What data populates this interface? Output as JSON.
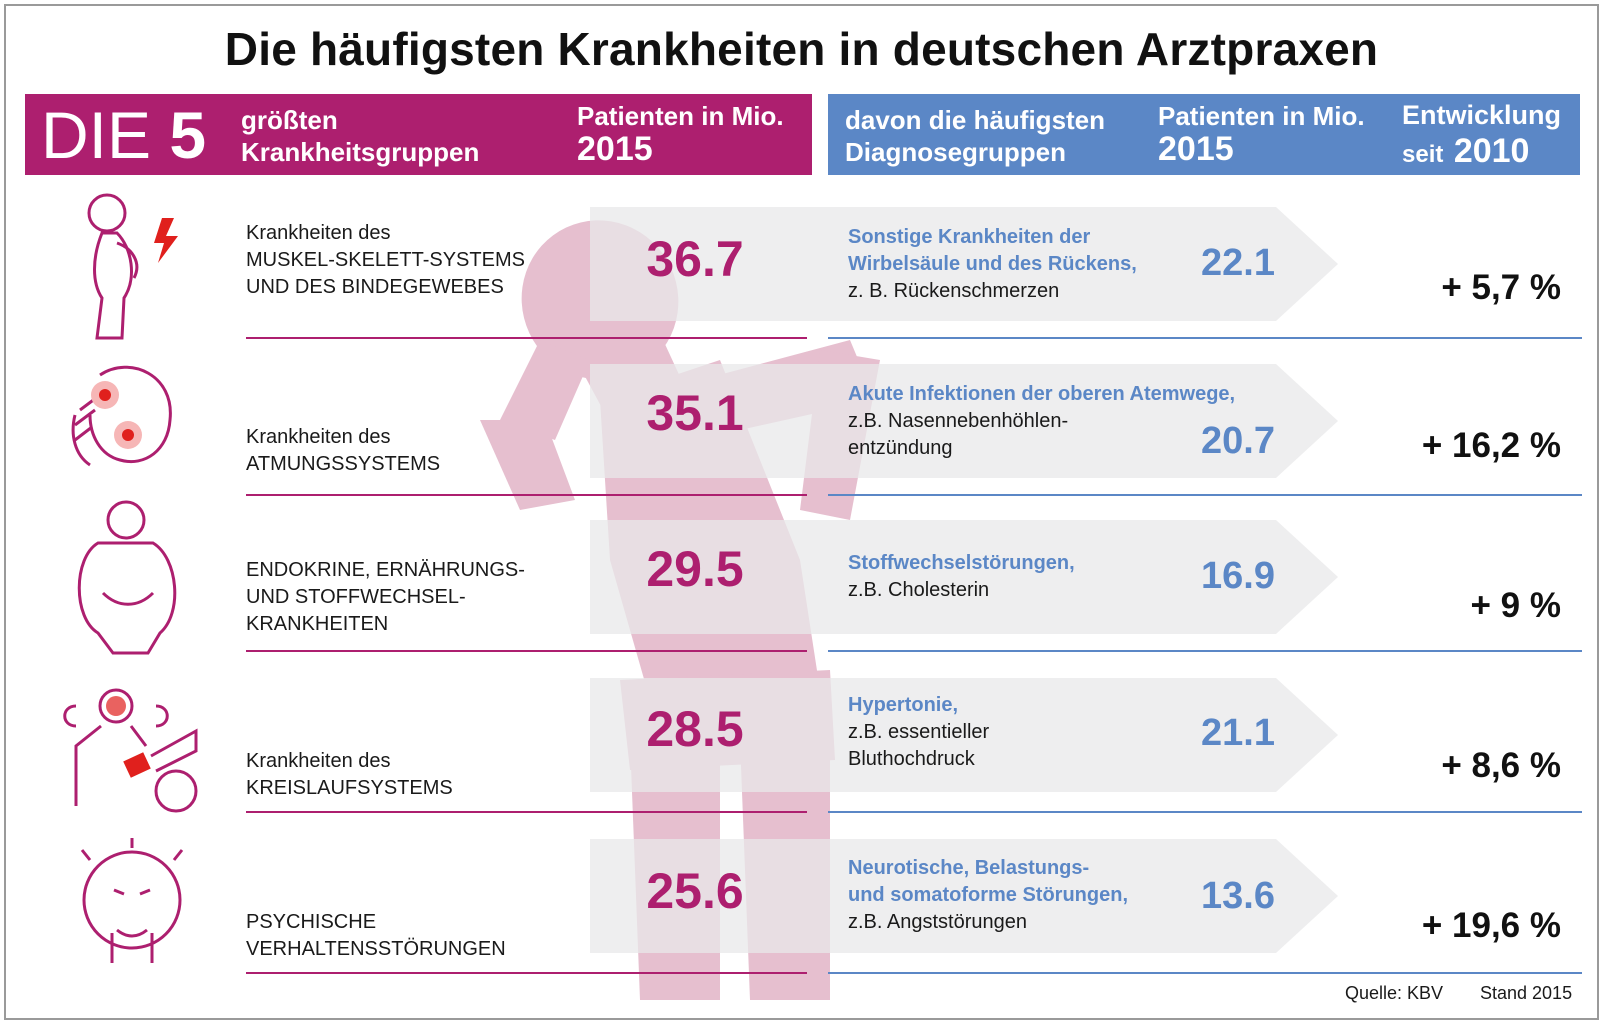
{
  "title": "Die häufigsten Krankheiten in deutschen Arztpraxen",
  "header_left": {
    "die": "DIE",
    "five": "5",
    "groups_line1": "größten",
    "groups_line2": "Krankheitsgruppen",
    "patients_line1": "Patienten in Mio.",
    "patients_year": "2015"
  },
  "header_right": {
    "diag_line1": "davon die häufigsten",
    "diag_line2": "Diagnosegruppen",
    "patients_line1": "Patienten in Mio.",
    "patients_year": "2015",
    "dev_line1": "Entwicklung",
    "dev_seit": "seit",
    "dev_year": "2010"
  },
  "colors": {
    "magenta": "#ad1f6f",
    "blue": "#5b87c6",
    "figure": "#e6bfcf",
    "arrow": "#e8e8ea"
  },
  "rows": [
    {
      "icon": "back-pain-icon",
      "category_line1": "Krankheiten des",
      "category_line2": "MUSKEL-SKELETT-SYSTEMS",
      "category_line3": "UND DES BINDEGEWEBES",
      "patients": "36.7",
      "diag_line1": "Sonstige Krankheiten der",
      "diag_line2": "Wirbelsäule und des Rückens,",
      "diag_line3": "z. B. Rückenschmerzen",
      "diag_patients": "22.1",
      "development": "+ 5,7 %"
    },
    {
      "icon": "sinus-pain-icon",
      "category_line1": "Krankheiten des",
      "category_line2": "ATMUNGSSYSTEMS",
      "category_line3": "",
      "patients": "35.1",
      "diag_line1": "Akute Infektionen der oberen Atemwege,",
      "diag_line2": "z.B. Nasennebenhöhlen-",
      "diag_line3": "entzündung",
      "diag_patients": "20.7",
      "development": "+ 16,2 %"
    },
    {
      "icon": "overweight-person-icon",
      "category_line1": "ENDOKRINE, ERNÄHRUNGS-",
      "category_line2": "UND STOFFWECHSEL-",
      "category_line3": "KRANKHEITEN",
      "patients": "29.5",
      "diag_line1": "Stoffwechselstörungen,",
      "diag_line2": "z.B. Cholesterin",
      "diag_line3": "",
      "diag_patients": "16.9",
      "development": "+ 9 %"
    },
    {
      "icon": "blood-pressure-icon",
      "category_line1": "Krankheiten des",
      "category_line2": "KREISLAUFSYSTEMS",
      "category_line3": "",
      "patients": "28.5",
      "diag_line1": "Hypertonie,",
      "diag_line2": "z.B. essentieller",
      "diag_line3": "Bluthochdruck",
      "diag_patients": "21.1",
      "development": "+ 8,6 %"
    },
    {
      "icon": "anxious-face-icon",
      "category_line1": "PSYCHISCHE",
      "category_line2": "VERHALTENSSTÖRUNGEN",
      "category_line3": "",
      "patients": "25.6",
      "diag_line1": "Neurotische, Belastungs-",
      "diag_line2": "und somatoforme Störungen,",
      "diag_line3": "z.B. Angststörungen",
      "diag_patients": "13.6",
      "development": "+ 19,6 %"
    }
  ],
  "footer": {
    "source": "Quelle: KBV",
    "stand": "Stand 2015"
  },
  "chart_data": {
    "type": "table",
    "title": "Die häufigsten Krankheiten in deutschen Arztpraxen",
    "columns": [
      "größten Krankheitsgruppen",
      "Patienten in Mio. 2015",
      "davon die häufigsten Diagnosegruppen",
      "Patienten in Mio. 2015",
      "Entwicklung seit 2010"
    ],
    "categories": [
      "Krankheiten des MUSKEL-SKELETT-SYSTEMS UND DES BINDEGEWEBES",
      "Krankheiten des ATMUNGSSYSTEMS",
      "ENDOKRINE, ERNÄHRUNGS- UND STOFFWECHSEL-KRANKHEITEN",
      "Krankheiten des KREISLAUFSYSTEMS",
      "PSYCHISCHE VERHALTENSSTÖRUNGEN"
    ],
    "series": [
      {
        "name": "Patienten in Mio. 2015",
        "values": [
          36.7,
          35.1,
          29.5,
          28.5,
          25.6
        ]
      },
      {
        "name": "Patienten in Mio. 2015",
        "values": [
          22.1,
          20.7,
          16.9,
          21.1,
          13.6
        ]
      },
      {
        "name": "Entwicklung seit 2010",
        "values": [
          5.7,
          16.2,
          9,
          8.6,
          19.6
        ]
      }
    ],
    "diagnoses": [
      "Sonstige Krankheiten der Wirbelsäule und des Rückens, z. B. Rückenschmerzen",
      "Akute Infektionen der oberen Atemwege, z.B. Nasennebenhöhlen-entzündung",
      "Stoffwechselstörungen, z.B. Cholesterin",
      "Hypertonie, z.B. essentieller Bluthochdruck",
      "Neurotische, Belastungs- und somatoforme Störungen, z.B. Angststörungen"
    ]
  }
}
